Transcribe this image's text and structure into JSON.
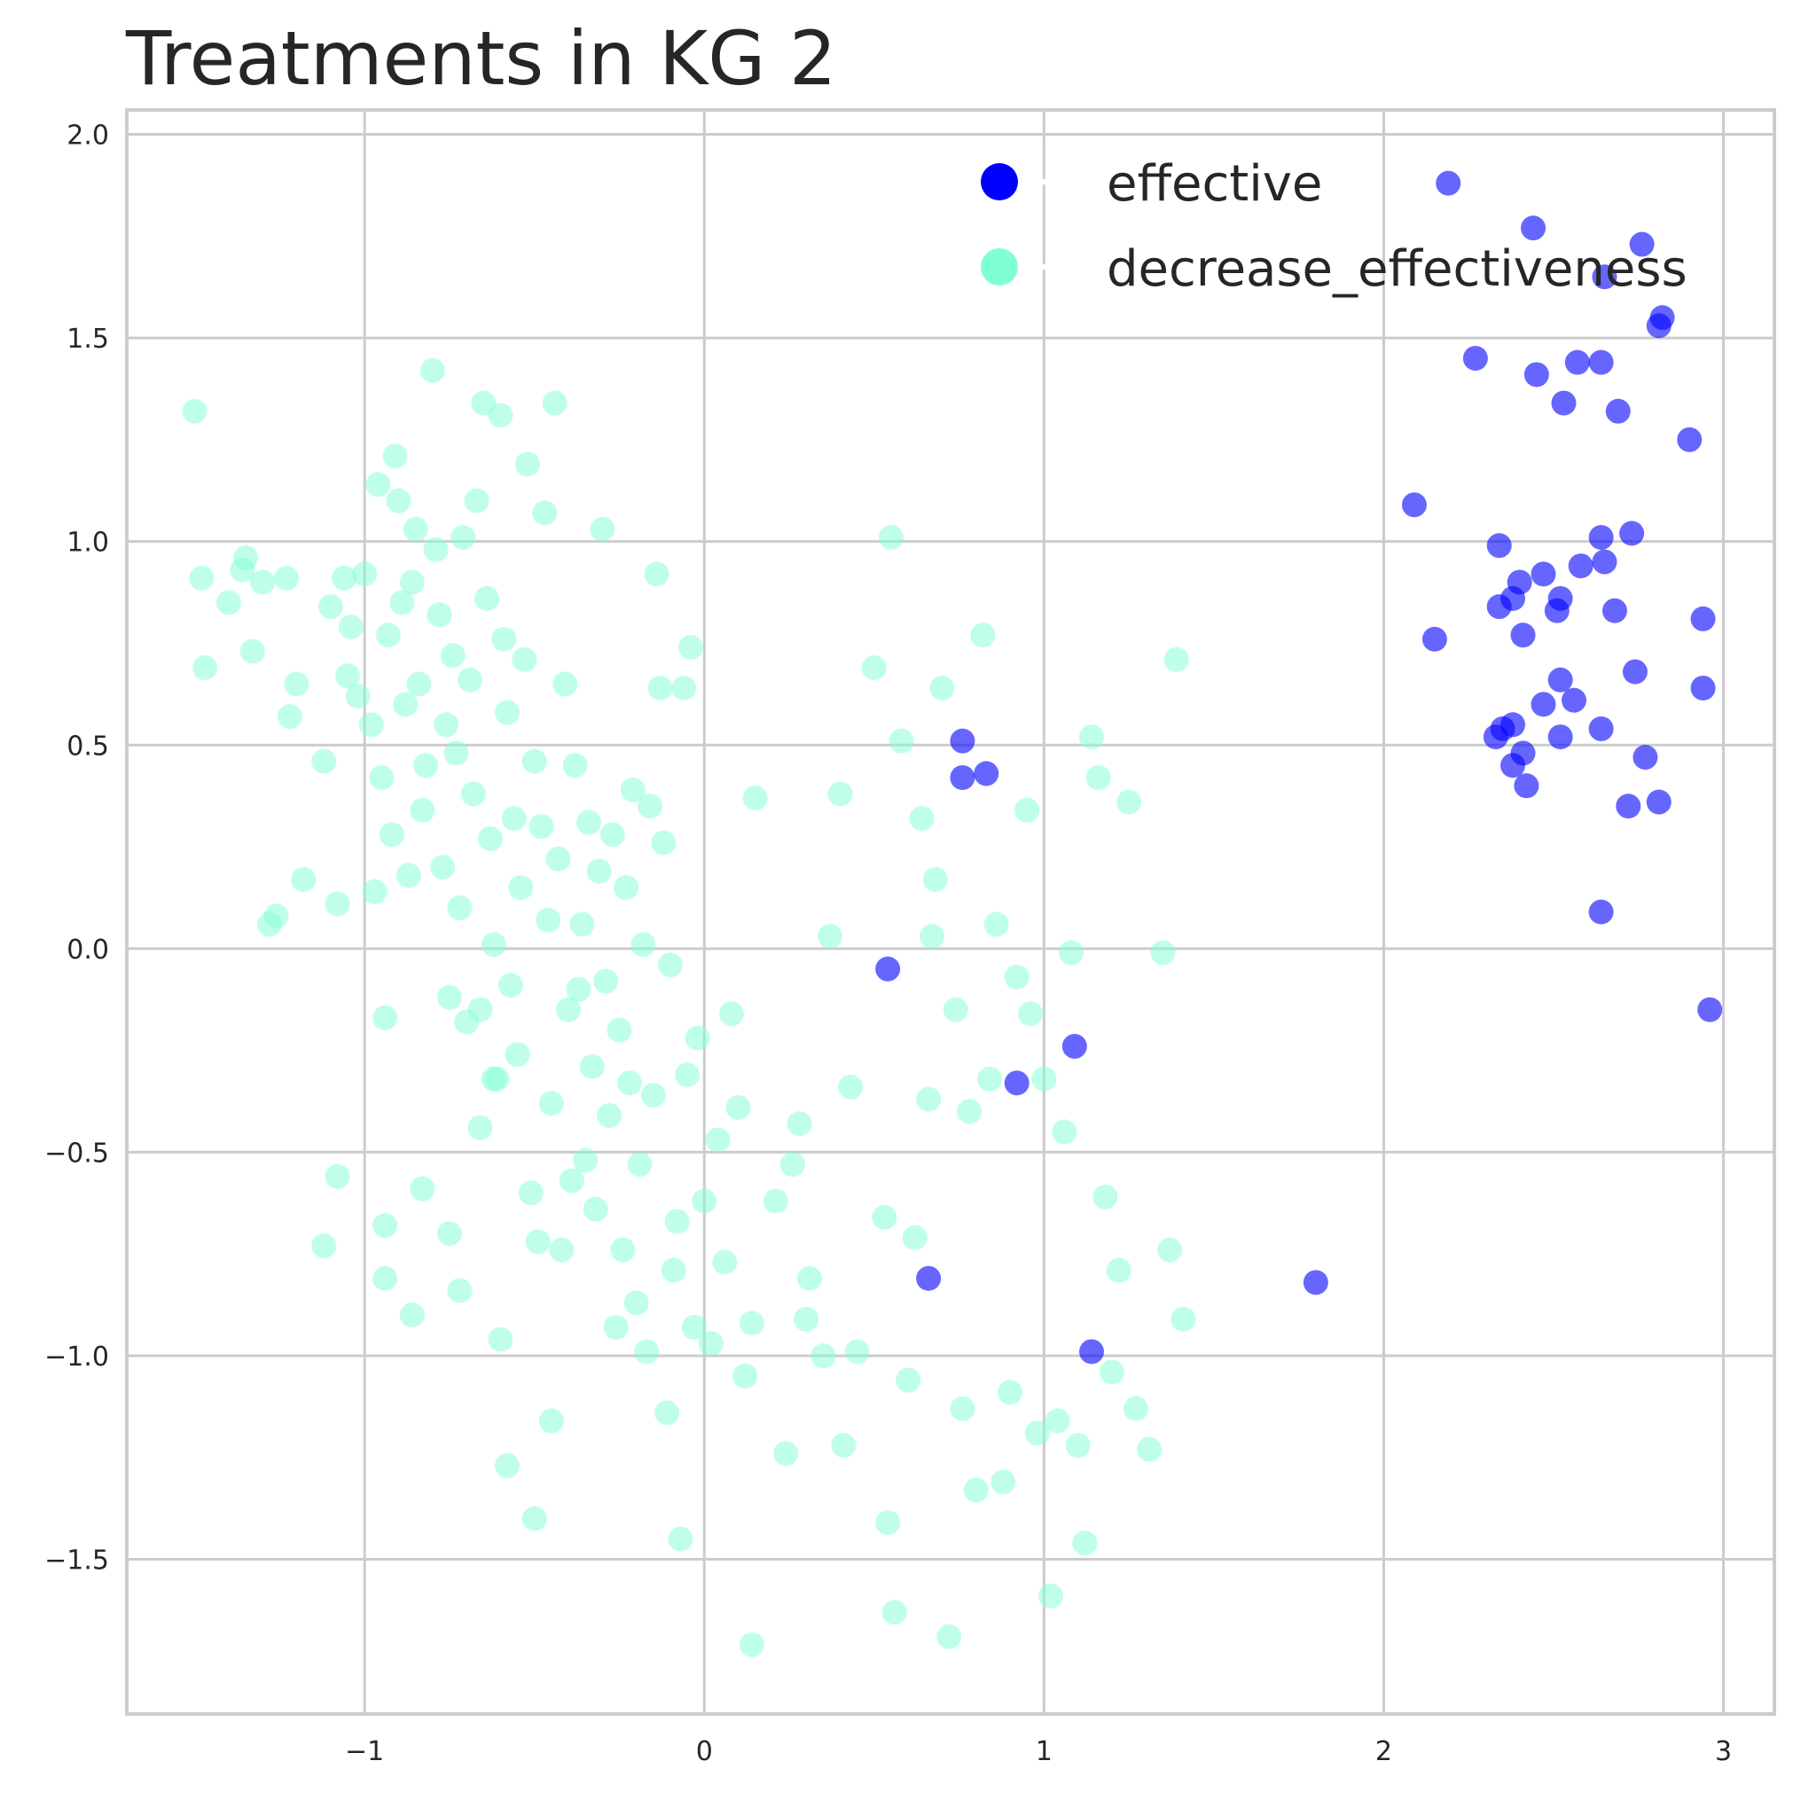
{
  "chart_data": {
    "type": "scatter",
    "title": "Treatments in KG 2",
    "xlabel": "",
    "ylabel": "",
    "xlim": [
      -1.7,
      3.15
    ],
    "ylim": [
      -1.88,
      2.06
    ],
    "xticks": [
      -1,
      0,
      1,
      2,
      3
    ],
    "xtick_labels": [
      "−1",
      "0",
      "1",
      "2",
      "3"
    ],
    "yticks": [
      -1.5,
      -1.0,
      -0.5,
      0.0,
      0.5,
      1.0,
      1.5,
      2.0
    ],
    "ytick_labels": [
      "−1.5",
      "−1.0",
      "−0.5",
      "0.0",
      "0.5",
      "1.0",
      "1.5",
      "2.0"
    ],
    "grid": true,
    "legend_position": "top-right",
    "series": [
      {
        "name": "decrease_effectiveness",
        "color": "#7fffd4",
        "points": [
          [
            -1.5,
            1.32
          ],
          [
            -1.48,
            0.91
          ],
          [
            -1.47,
            0.69
          ],
          [
            -1.4,
            0.85
          ],
          [
            -1.36,
            0.93
          ],
          [
            -1.35,
            0.96
          ],
          [
            -1.33,
            0.73
          ],
          [
            -1.3,
            0.9
          ],
          [
            -1.28,
            0.06
          ],
          [
            -1.26,
            0.08
          ],
          [
            -1.23,
            0.91
          ],
          [
            -1.22,
            0.57
          ],
          [
            -1.2,
            0.65
          ],
          [
            -1.18,
            0.17
          ],
          [
            -1.12,
            0.46
          ],
          [
            -1.1,
            0.84
          ],
          [
            -1.08,
            0.11
          ],
          [
            -1.06,
            0.91
          ],
          [
            -1.05,
            0.67
          ],
          [
            -1.04,
            0.79
          ],
          [
            -1.02,
            0.62
          ],
          [
            -1.0,
            0.92
          ],
          [
            -0.98,
            0.55
          ],
          [
            -0.97,
            0.14
          ],
          [
            -0.96,
            1.14
          ],
          [
            -0.95,
            0.42
          ],
          [
            -0.94,
            -0.17
          ],
          [
            -0.93,
            0.77
          ],
          [
            -0.92,
            0.28
          ],
          [
            -0.91,
            1.21
          ],
          [
            -0.9,
            1.1
          ],
          [
            -0.89,
            0.85
          ],
          [
            -0.88,
            0.6
          ],
          [
            -0.87,
            0.18
          ],
          [
            -0.86,
            0.9
          ],
          [
            -0.85,
            1.03
          ],
          [
            -0.84,
            0.65
          ],
          [
            -0.83,
            0.34
          ],
          [
            -0.82,
            0.45
          ],
          [
            -0.8,
            1.42
          ],
          [
            -0.79,
            0.98
          ],
          [
            -0.78,
            0.82
          ],
          [
            -0.77,
            0.2
          ],
          [
            -0.76,
            0.55
          ],
          [
            -0.75,
            -0.12
          ],
          [
            -0.74,
            0.72
          ],
          [
            -0.73,
            0.48
          ],
          [
            -0.72,
            0.1
          ],
          [
            -0.71,
            1.01
          ],
          [
            -0.7,
            -0.18
          ],
          [
            -0.69,
            0.66
          ],
          [
            -0.68,
            0.38
          ],
          [
            -0.67,
            1.1
          ],
          [
            -0.66,
            -0.44
          ],
          [
            -0.65,
            1.34
          ],
          [
            -0.64,
            0.86
          ],
          [
            -0.63,
            0.27
          ],
          [
            -0.62,
            0.01
          ],
          [
            -0.61,
            -0.32
          ],
          [
            -0.6,
            1.31
          ],
          [
            -0.59,
            0.76
          ],
          [
            -0.58,
            0.58
          ],
          [
            -0.57,
            -0.09
          ],
          [
            -0.56,
            0.32
          ],
          [
            -0.55,
            -0.26
          ],
          [
            -0.54,
            0.15
          ],
          [
            -0.53,
            0.71
          ],
          [
            -0.52,
            1.19
          ],
          [
            -0.51,
            -0.6
          ],
          [
            -0.5,
            0.46
          ],
          [
            -0.49,
            -0.72
          ],
          [
            -0.48,
            0.3
          ],
          [
            -0.47,
            1.07
          ],
          [
            -0.46,
            0.07
          ],
          [
            -0.45,
            -0.38
          ],
          [
            -0.44,
            1.34
          ],
          [
            -0.43,
            0.22
          ],
          [
            -0.42,
            -0.74
          ],
          [
            -0.41,
            0.65
          ],
          [
            -0.4,
            -0.15
          ],
          [
            -0.39,
            -0.57
          ],
          [
            -0.38,
            0.45
          ],
          [
            -0.37,
            -0.1
          ],
          [
            -0.36,
            0.06
          ],
          [
            -0.35,
            -0.52
          ],
          [
            -0.34,
            0.31
          ],
          [
            -0.33,
            -0.29
          ],
          [
            -0.32,
            -0.64
          ],
          [
            -0.31,
            0.19
          ],
          [
            -0.3,
            1.03
          ],
          [
            -0.29,
            -0.08
          ],
          [
            -0.28,
            -0.41
          ],
          [
            -0.27,
            0.28
          ],
          [
            -0.26,
            -0.93
          ],
          [
            -0.25,
            -0.2
          ],
          [
            -0.24,
            -0.74
          ],
          [
            -0.23,
            0.15
          ],
          [
            -0.22,
            -0.33
          ],
          [
            -0.21,
            0.39
          ],
          [
            -0.2,
            -0.87
          ],
          [
            -0.19,
            -0.53
          ],
          [
            -0.18,
            0.01
          ],
          [
            -0.17,
            -0.99
          ],
          [
            -0.16,
            0.35
          ],
          [
            -0.15,
            -0.36
          ],
          [
            -0.14,
            0.92
          ],
          [
            -0.13,
            0.64
          ],
          [
            -0.12,
            0.26
          ],
          [
            -0.11,
            -1.14
          ],
          [
            -0.1,
            -0.04
          ],
          [
            -0.09,
            -0.79
          ],
          [
            -0.08,
            -0.67
          ],
          [
            -0.07,
            -1.45
          ],
          [
            -0.06,
            0.64
          ],
          [
            -0.05,
            -0.31
          ],
          [
            -0.04,
            0.74
          ],
          [
            -0.03,
            -0.93
          ],
          [
            -0.02,
            -0.22
          ],
          [
            0.0,
            -0.62
          ],
          [
            0.02,
            -0.97
          ],
          [
            0.04,
            -0.47
          ],
          [
            0.06,
            -0.77
          ],
          [
            0.08,
            -0.16
          ],
          [
            0.1,
            -0.39
          ],
          [
            0.12,
            -1.05
          ],
          [
            0.14,
            -0.92
          ],
          [
            0.15,
            0.37
          ],
          [
            0.14,
            -1.71
          ],
          [
            0.21,
            -0.62
          ],
          [
            0.24,
            -1.24
          ],
          [
            0.26,
            -0.53
          ],
          [
            0.28,
            -0.43
          ],
          [
            0.31,
            -0.81
          ],
          [
            0.37,
            0.03
          ],
          [
            0.4,
            0.38
          ],
          [
            0.41,
            -1.22
          ],
          [
            0.43,
            -0.34
          ],
          [
            0.45,
            -0.99
          ],
          [
            0.5,
            0.69
          ],
          [
            0.53,
            -0.66
          ],
          [
            0.54,
            -1.41
          ],
          [
            0.55,
            1.01
          ],
          [
            0.56,
            -1.63
          ],
          [
            0.58,
            0.51
          ],
          [
            0.6,
            -1.06
          ],
          [
            0.62,
            -0.71
          ],
          [
            0.64,
            0.32
          ],
          [
            0.66,
            -0.37
          ],
          [
            0.67,
            0.03
          ],
          [
            0.68,
            0.17
          ],
          [
            0.7,
            0.64
          ],
          [
            0.72,
            -1.69
          ],
          [
            0.74,
            -0.15
          ],
          [
            0.76,
            -1.13
          ],
          [
            0.78,
            -0.4
          ],
          [
            0.8,
            -1.33
          ],
          [
            0.82,
            0.77
          ],
          [
            0.84,
            -0.32
          ],
          [
            0.86,
            0.06
          ],
          [
            0.88,
            -1.31
          ],
          [
            0.9,
            -1.09
          ],
          [
            0.92,
            -0.07
          ],
          [
            0.95,
            0.34
          ],
          [
            0.96,
            -0.16
          ],
          [
            0.98,
            -1.19
          ],
          [
            1.0,
            -0.32
          ],
          [
            1.02,
            -1.59
          ],
          [
            1.04,
            -1.16
          ],
          [
            1.06,
            -0.45
          ],
          [
            1.08,
            -0.01
          ],
          [
            1.1,
            -1.22
          ],
          [
            1.12,
            -1.46
          ],
          [
            1.14,
            0.52
          ],
          [
            1.16,
            0.42
          ],
          [
            1.18,
            -0.61
          ],
          [
            1.2,
            -1.04
          ],
          [
            1.22,
            -0.79
          ],
          [
            1.25,
            0.36
          ],
          [
            1.27,
            -1.13
          ],
          [
            1.31,
            -1.23
          ],
          [
            1.35,
            -0.01
          ],
          [
            1.37,
            -0.74
          ],
          [
            1.39,
            0.71
          ],
          [
            1.41,
            -0.91
          ],
          [
            0.3,
            -0.91
          ],
          [
            0.35,
            -1.0
          ],
          [
            -0.45,
            -1.16
          ],
          [
            -0.5,
            -1.4
          ],
          [
            -0.58,
            -1.27
          ],
          [
            -0.6,
            -0.96
          ],
          [
            -0.75,
            -0.7
          ],
          [
            -0.72,
            -0.84
          ],
          [
            -0.86,
            -0.9
          ],
          [
            -0.94,
            -0.68
          ],
          [
            -1.08,
            -0.56
          ],
          [
            -1.12,
            -0.73
          ],
          [
            -0.94,
            -0.81
          ],
          [
            -0.83,
            -0.59
          ],
          [
            -0.62,
            -0.32
          ],
          [
            -0.66,
            -0.15
          ]
        ]
      },
      {
        "name": "effective",
        "color": "#0000ff",
        "points": [
          [
            2.19,
            1.88
          ],
          [
            2.44,
            1.77
          ],
          [
            2.76,
            1.73
          ],
          [
            2.65,
            1.65
          ],
          [
            2.82,
            1.55
          ],
          [
            2.81,
            1.53
          ],
          [
            2.27,
            1.45
          ],
          [
            2.57,
            1.44
          ],
          [
            2.64,
            1.44
          ],
          [
            2.45,
            1.41
          ],
          [
            2.53,
            1.34
          ],
          [
            2.69,
            1.32
          ],
          [
            2.9,
            1.25
          ],
          [
            2.09,
            1.09
          ],
          [
            2.64,
            1.01
          ],
          [
            2.73,
            1.02
          ],
          [
            2.34,
            0.99
          ],
          [
            2.65,
            0.95
          ],
          [
            2.58,
            0.94
          ],
          [
            2.47,
            0.92
          ],
          [
            2.4,
            0.9
          ],
          [
            2.38,
            0.86
          ],
          [
            2.52,
            0.86
          ],
          [
            2.34,
            0.84
          ],
          [
            2.68,
            0.83
          ],
          [
            2.51,
            0.83
          ],
          [
            2.94,
            0.81
          ],
          [
            2.41,
            0.77
          ],
          [
            2.15,
            0.76
          ],
          [
            2.74,
            0.68
          ],
          [
            2.52,
            0.66
          ],
          [
            2.94,
            0.64
          ],
          [
            2.56,
            0.61
          ],
          [
            2.47,
            0.6
          ],
          [
            2.64,
            0.54
          ],
          [
            2.35,
            0.54
          ],
          [
            2.33,
            0.52
          ],
          [
            2.52,
            0.52
          ],
          [
            2.38,
            0.55
          ],
          [
            2.41,
            0.48
          ],
          [
            2.77,
            0.47
          ],
          [
            2.38,
            0.45
          ],
          [
            2.42,
            0.4
          ],
          [
            2.72,
            0.35
          ],
          [
            2.81,
            0.36
          ],
          [
            2.64,
            0.09
          ],
          [
            2.96,
            -0.15
          ],
          [
            0.76,
            0.51
          ],
          [
            0.76,
            0.42
          ],
          [
            0.83,
            0.43
          ],
          [
            0.54,
            -0.05
          ],
          [
            1.09,
            -0.24
          ],
          [
            0.92,
            -0.33
          ],
          [
            0.66,
            -0.81
          ],
          [
            1.8,
            -0.82
          ],
          [
            1.14,
            -0.99
          ]
        ]
      }
    ]
  }
}
